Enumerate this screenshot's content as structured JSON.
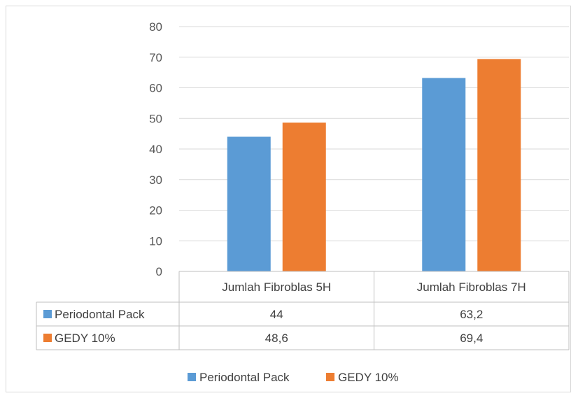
{
  "chart_data": {
    "type": "bar",
    "categories": [
      "Jumlah Fibroblas 5H",
      "Jumlah Fibroblas 7H"
    ],
    "series": [
      {
        "name": "Periodontal Pack",
        "values": [
          44,
          63.2
        ],
        "value_labels": [
          "44",
          "63,2"
        ],
        "color": "#5b9bd5"
      },
      {
        "name": "GEDY 10%",
        "values": [
          48.6,
          69.4
        ],
        "value_labels": [
          "48,6",
          "69,4"
        ],
        "color": "#ed7d31"
      }
    ],
    "title": "",
    "xlabel": "",
    "ylabel": "",
    "ylim": [
      0,
      80
    ],
    "yticks": [
      "0",
      "10",
      "20",
      "30",
      "40",
      "50",
      "60",
      "70",
      "80"
    ],
    "grid": true,
    "data_table": true,
    "legend": "bottom",
    "legend_entries": [
      "Periodontal Pack",
      "GEDY 10%"
    ]
  }
}
